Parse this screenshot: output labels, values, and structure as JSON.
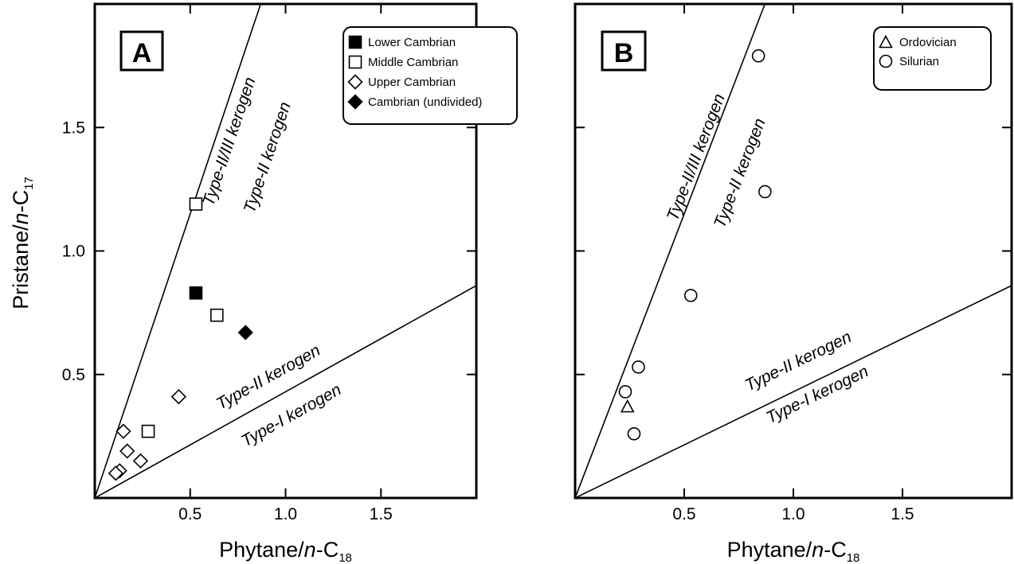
{
  "chart_data": [
    {
      "panel": "A",
      "type": "scatter",
      "xlabel": "Phytane/n-C18",
      "ylabel": "Pristane/n-C17",
      "xlim": [
        0,
        2.0
      ],
      "ylim": [
        0,
        2.0
      ],
      "xticks": [
        "0.5",
        "1.0",
        "1.5"
      ],
      "yticks": [
        "0.5",
        "1.0",
        "1.5"
      ],
      "legend_position": "top-right",
      "grid": false,
      "reference_lines": [
        {
          "slope": 2.3,
          "upper_label": "Type-II/III kerogen",
          "lower_label": "Type-II kerogen"
        },
        {
          "slope": 0.43,
          "upper_label": "Type-II kerogen",
          "lower_label": "Type-I kerogen"
        }
      ],
      "series": [
        {
          "name": "Lower Cambrian",
          "marker": "square-filled",
          "points": [
            [
              0.53,
              0.83
            ]
          ]
        },
        {
          "name": "Middle Cambrian",
          "marker": "square-open",
          "points": [
            [
              0.53,
              1.19
            ],
            [
              0.64,
              0.74
            ],
            [
              0.28,
              0.27
            ]
          ]
        },
        {
          "name": "Upper Cambrian",
          "marker": "diamond-open",
          "points": [
            [
              0.44,
              0.41
            ],
            [
              0.15,
              0.27
            ],
            [
              0.17,
              0.19
            ],
            [
              0.24,
              0.15
            ],
            [
              0.13,
              0.11
            ],
            [
              0.11,
              0.1
            ]
          ]
        },
        {
          "name": "Cambrian (undivided)",
          "marker": "diamond-filled",
          "points": [
            [
              0.79,
              0.67
            ]
          ]
        }
      ]
    },
    {
      "panel": "B",
      "type": "scatter",
      "xlabel": "Phytane/n-C18",
      "ylabel": "",
      "xlim": [
        0,
        2.0
      ],
      "ylim": [
        0,
        2.0
      ],
      "xticks": [
        "0.5",
        "1.0",
        "1.5"
      ],
      "yticks": [],
      "legend_position": "top-right",
      "grid": false,
      "reference_lines": [
        {
          "slope": 2.3,
          "upper_label": "Type-II/III kerogen",
          "lower_label": "Type-II kerogen"
        },
        {
          "slope": 0.43,
          "upper_label": "Type-II kerogen",
          "lower_label": "Type-I kerogen"
        }
      ],
      "series": [
        {
          "name": "Ordovician",
          "marker": "triangle-open",
          "points": [
            [
              0.24,
              0.37
            ]
          ]
        },
        {
          "name": "Silurian",
          "marker": "circle-open",
          "points": [
            [
              0.84,
              1.79
            ],
            [
              0.87,
              1.24
            ],
            [
              0.53,
              0.82
            ],
            [
              0.29,
              0.53
            ],
            [
              0.23,
              0.43
            ],
            [
              0.27,
              0.26
            ]
          ]
        }
      ]
    }
  ]
}
